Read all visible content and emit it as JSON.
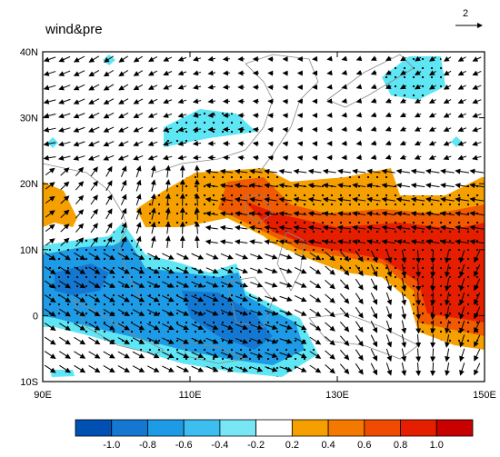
{
  "title": "wind&pre",
  "reference_vector": "2",
  "lat_ticks": [
    "40N",
    "30N",
    "20N",
    "10N",
    "0",
    "10S"
  ],
  "lon_ticks": [
    "90E",
    "110E",
    "130E",
    "150E"
  ],
  "colorbar": {
    "labels": [
      "-1.0",
      "-0.8",
      "-0.6",
      "-0.4",
      "-0.2",
      "0.2",
      "0.4",
      "0.6",
      "0.8",
      "1.0"
    ],
    "colors": [
      "#0050b4",
      "#1478d2",
      "#1e9be6",
      "#3cbef0",
      "#78e6f5",
      "#ffffff",
      "#f5a000",
      "#f57800",
      "#f04b00",
      "#e61e00",
      "#c80000"
    ]
  }
}
